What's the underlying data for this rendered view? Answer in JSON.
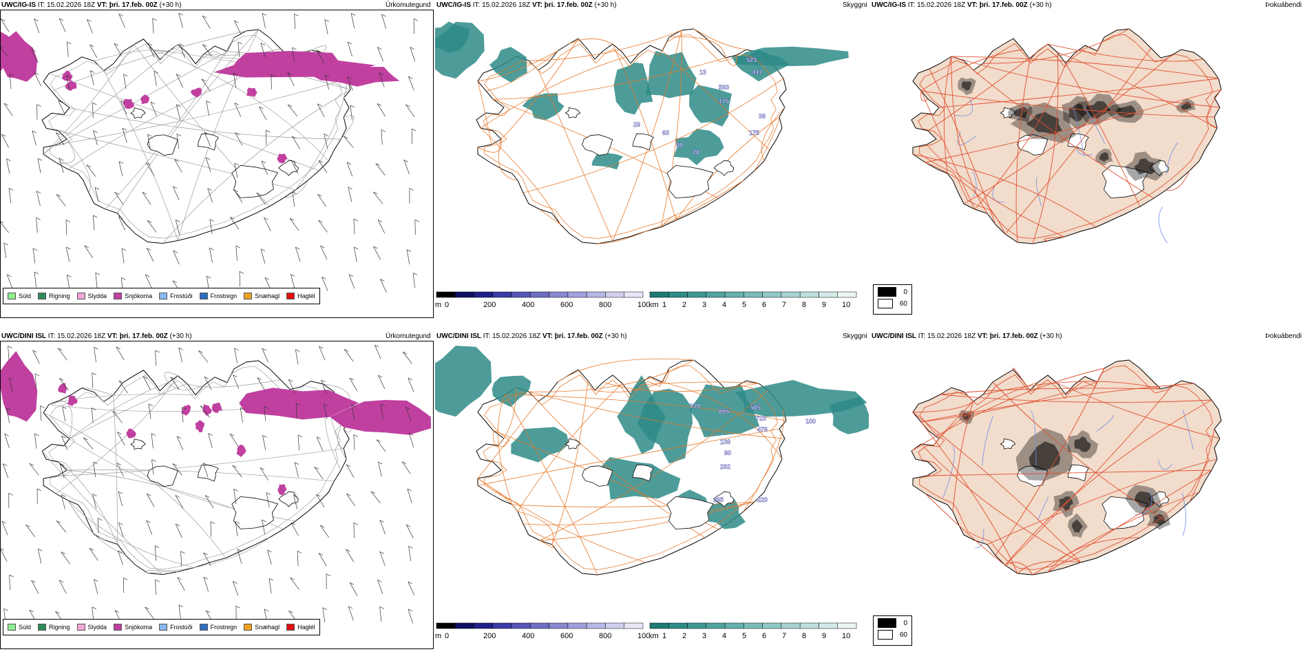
{
  "panels": [
    {
      "model": "UWC/IG-IS",
      "it_label": "IT:",
      "it": "15.02.2026 18Z",
      "vt_label": "VT:",
      "vt": "þri. 17.feb. 00Z",
      "lead": "(+30 h)",
      "param": "Úrkomutegund"
    },
    {
      "model": "UWC/IG-IS",
      "it_label": "IT:",
      "it": "15.02.2026 18Z",
      "vt_label": "VT:",
      "vt": "þri. 17.feb. 00Z",
      "lead": "(+30 h)",
      "param": "Skyggni"
    },
    {
      "model": "UWC/IG-IS",
      "it_label": "IT:",
      "it": "15.02.2026 18Z",
      "vt_label": "VT:",
      "vt": "þri. 17.feb. 00Z",
      "lead": "(+30 h)",
      "param": "Þokuábendi"
    },
    {
      "model": "UWC/DINI ISL",
      "it_label": "IT:",
      "it": "15.02.2026 18Z",
      "vt_label": "VT:",
      "vt": "þri. 17.feb. 00Z",
      "lead": "(+30 h)",
      "param": "Úrkomutegund"
    },
    {
      "model": "UWC/DINI ISL",
      "it_label": "IT:",
      "it": "15.02.2026 18Z",
      "vt_label": "VT:",
      "vt": "þri. 17.feb. 00Z",
      "lead": "(+30 h)",
      "param": "Skyggni"
    },
    {
      "model": "UWC/DINI ISL",
      "it_label": "IT:",
      "it": "15.02.2026 18Z",
      "vt_label": "VT:",
      "vt": "þri. 17.feb. 00Z",
      "lead": "(+30 h)",
      "param": "Þokuábendi"
    }
  ],
  "precip_legend": [
    {
      "label": "Súld",
      "color": "#90ee90"
    },
    {
      "label": "Rigning",
      "color": "#2e8b57"
    },
    {
      "label": "Slydda",
      "color": "#f4a6d7"
    },
    {
      "label": "Snjókoma",
      "color": "#c040a0"
    },
    {
      "label": "Frostúði",
      "color": "#87b8f0"
    },
    {
      "label": "Frostregn",
      "color": "#2f6fc0"
    },
    {
      "label": "Snæhagl",
      "color": "#f0a020"
    },
    {
      "label": "Haglél",
      "color": "#e01010"
    }
  ],
  "ceiling_scale": {
    "unit": "m",
    "ticks": [
      "0",
      "200",
      "400",
      "600",
      "800",
      "1000"
    ]
  },
  "vis_scale": {
    "unit": "km",
    "ticks": [
      "1",
      "2",
      "3",
      "4",
      "5",
      "6",
      "7",
      "8",
      "9",
      "10"
    ]
  },
  "fog_scale": {
    "ticks": [
      "0",
      "60"
    ]
  },
  "ceiling_labels_top": [
    "523",
    "447",
    "583",
    "175",
    "38",
    "175",
    "13",
    "30",
    "28",
    "63",
    "29"
  ],
  "ceiling_labels_bottom": [
    "179",
    "895",
    "585",
    "723",
    "476",
    "138",
    "90",
    "292",
    "265",
    "220",
    "100"
  ],
  "colors": {
    "snow": "#c040a0",
    "vis": "#2e8b87",
    "road": "#e8782a",
    "road_fog": "#e05030",
    "land_fog": "#f2dccb",
    "river": "#6f8fe8",
    "ceil_blue": "#2f2f9f"
  }
}
